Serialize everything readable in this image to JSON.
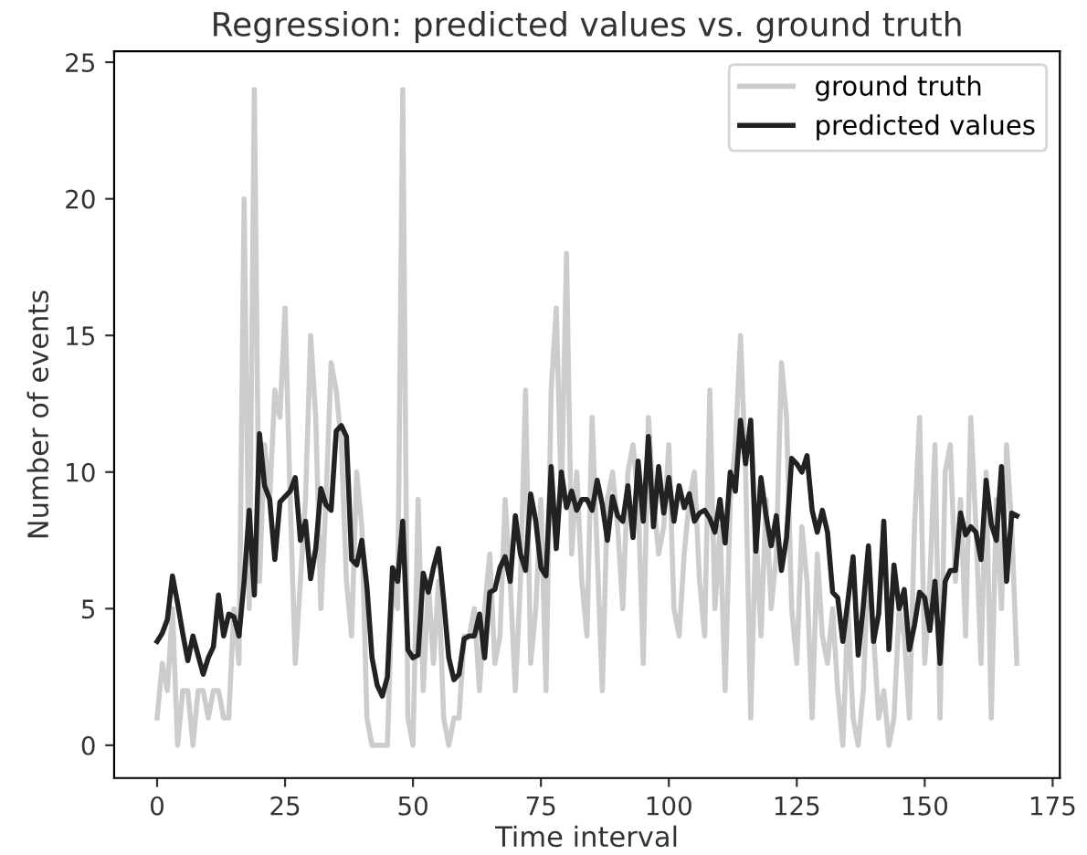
{
  "chart_data": {
    "type": "line",
    "title": "Regression: predicted values vs. ground truth",
    "xlabel": "Time interval",
    "ylabel": "Number of events",
    "x": [
      0,
      1,
      2,
      3,
      4,
      5,
      6,
      7,
      8,
      9,
      10,
      11,
      12,
      13,
      14,
      15,
      16,
      17,
      18,
      19,
      20,
      21,
      22,
      23,
      24,
      25,
      26,
      27,
      28,
      29,
      30,
      31,
      32,
      33,
      34,
      35,
      36,
      37,
      38,
      39,
      40,
      41,
      42,
      43,
      44,
      45,
      46,
      47,
      48,
      49,
      50,
      51,
      52,
      53,
      54,
      55,
      56,
      57,
      58,
      59,
      60,
      61,
      62,
      63,
      64,
      65,
      66,
      67,
      68,
      69,
      70,
      71,
      72,
      73,
      74,
      75,
      76,
      77,
      78,
      79,
      80,
      81,
      82,
      83,
      84,
      85,
      86,
      87,
      88,
      89,
      90,
      91,
      92,
      93,
      94,
      95,
      96,
      97,
      98,
      99,
      100,
      101,
      102,
      103,
      104,
      105,
      106,
      107,
      108,
      109,
      110,
      111,
      112,
      113,
      114,
      115,
      116,
      117,
      118,
      119,
      120,
      121,
      122,
      123,
      124,
      125,
      126,
      127,
      128,
      129,
      130,
      131,
      132,
      133,
      134,
      135,
      136,
      137,
      138,
      139,
      140,
      141,
      142,
      143,
      144,
      145,
      146,
      147,
      148,
      149,
      150,
      151,
      152,
      153,
      154,
      155,
      156,
      157,
      158,
      159,
      160,
      161,
      162,
      163,
      164,
      165,
      166,
      167,
      168
    ],
    "series": [
      {
        "name": "ground truth",
        "color": "#cccccc",
        "values": [
          1,
          3,
          2,
          5,
          0,
          2,
          2,
          0,
          2,
          2,
          1,
          2,
          2,
          1,
          1,
          5,
          3,
          20,
          5,
          24,
          6,
          11,
          9,
          13,
          12,
          16,
          9,
          3,
          6,
          9,
          15,
          12,
          5,
          9,
          14,
          13,
          11,
          6,
          4,
          10,
          8,
          1,
          0,
          0,
          0,
          0,
          6,
          5,
          24,
          1,
          0,
          9,
          2,
          6,
          3,
          6,
          1,
          0,
          1,
          1,
          4,
          4,
          5,
          2,
          5,
          7,
          3,
          4,
          9,
          6,
          2,
          6,
          13,
          3,
          5,
          9,
          2,
          13,
          16,
          9,
          18,
          7,
          10,
          6,
          4,
          12,
          7,
          2,
          9,
          10,
          8,
          5,
          10,
          11,
          9,
          3,
          12,
          9,
          7,
          8,
          11,
          5,
          4,
          7,
          9,
          10,
          6,
          4,
          13,
          5,
          8,
          2,
          9,
          11,
          15,
          10,
          1,
          8,
          4,
          9,
          5,
          7,
          14,
          12,
          5,
          3,
          8,
          6,
          1,
          7,
          4,
          3,
          5,
          2,
          0,
          5,
          1,
          0,
          2,
          7,
          4,
          1,
          2,
          0,
          1,
          5,
          4,
          1,
          8,
          12,
          3,
          6,
          11,
          1,
          10,
          11,
          6,
          9,
          4,
          12,
          8,
          3,
          10,
          1,
          9,
          5,
          11,
          8,
          3
        ]
      },
      {
        "name": "predicted values",
        "color": "#222222",
        "values": [
          3.8,
          4.1,
          4.6,
          6.2,
          5.2,
          4.1,
          3.1,
          4.0,
          3.3,
          2.6,
          3.2,
          3.6,
          5.5,
          4.0,
          4.8,
          4.7,
          4.0,
          6.0,
          8.6,
          5.5,
          11.4,
          9.5,
          9.0,
          6.8,
          8.9,
          9.1,
          9.3,
          9.8,
          7.5,
          8.2,
          6.1,
          7.2,
          9.4,
          8.8,
          8.6,
          11.5,
          11.7,
          11.3,
          6.8,
          6.6,
          7.5,
          5.8,
          3.2,
          2.2,
          1.8,
          2.5,
          6.5,
          6.0,
          8.2,
          3.5,
          3.2,
          3.3,
          6.3,
          5.6,
          6.5,
          7.2,
          5.3,
          3.2,
          2.4,
          2.6,
          3.9,
          4.0,
          4.0,
          4.8,
          3.2,
          5.6,
          5.7,
          6.5,
          6.9,
          6.0,
          8.4,
          7.0,
          6.4,
          9.2,
          8.2,
          6.5,
          6.2,
          10.2,
          7.2,
          10.0,
          8.7,
          9.3,
          8.6,
          9.0,
          9.0,
          8.6,
          9.7,
          8.8,
          7.5,
          9.1,
          8.4,
          8.2,
          9.5,
          7.6,
          10.4,
          8.2,
          11.3,
          8.0,
          10.2,
          8.5,
          9.8,
          8.2,
          9.5,
          8.7,
          9.2,
          8.2,
          8.5,
          8.6,
          8.3,
          7.8,
          9.0,
          7.4,
          10.0,
          9.3,
          11.9,
          10.3,
          11.9,
          7.1,
          9.8,
          8.4,
          7.3,
          8.4,
          6.4,
          7.6,
          10.5,
          10.3,
          10.0,
          10.6,
          8.6,
          7.8,
          8.6,
          7.8,
          5.6,
          5.4,
          3.8,
          5.3,
          6.9,
          3.3,
          5.1,
          7.3,
          3.8,
          4.8,
          8.2,
          3.5,
          6.6,
          5.0,
          5.7,
          3.5,
          4.4,
          5.6,
          5.4,
          4.2,
          6.0,
          3.0,
          6.0,
          6.4,
          6.4,
          8.5,
          7.7,
          8.0,
          7.8,
          6.8,
          9.7,
          8.1,
          7.5,
          10.2,
          6.0,
          8.5,
          8.4
        ]
      }
    ],
    "xlim": [
      -8.4,
      176.4
    ],
    "ylim": [
      -1.2,
      25.4
    ],
    "xticks": [
      0,
      25,
      50,
      75,
      100,
      125,
      150,
      175
    ],
    "yticks": [
      0,
      5,
      10,
      15,
      20,
      25
    ],
    "grid": false,
    "legend": "upper right",
    "line_style": "solid",
    "marker": "none"
  }
}
